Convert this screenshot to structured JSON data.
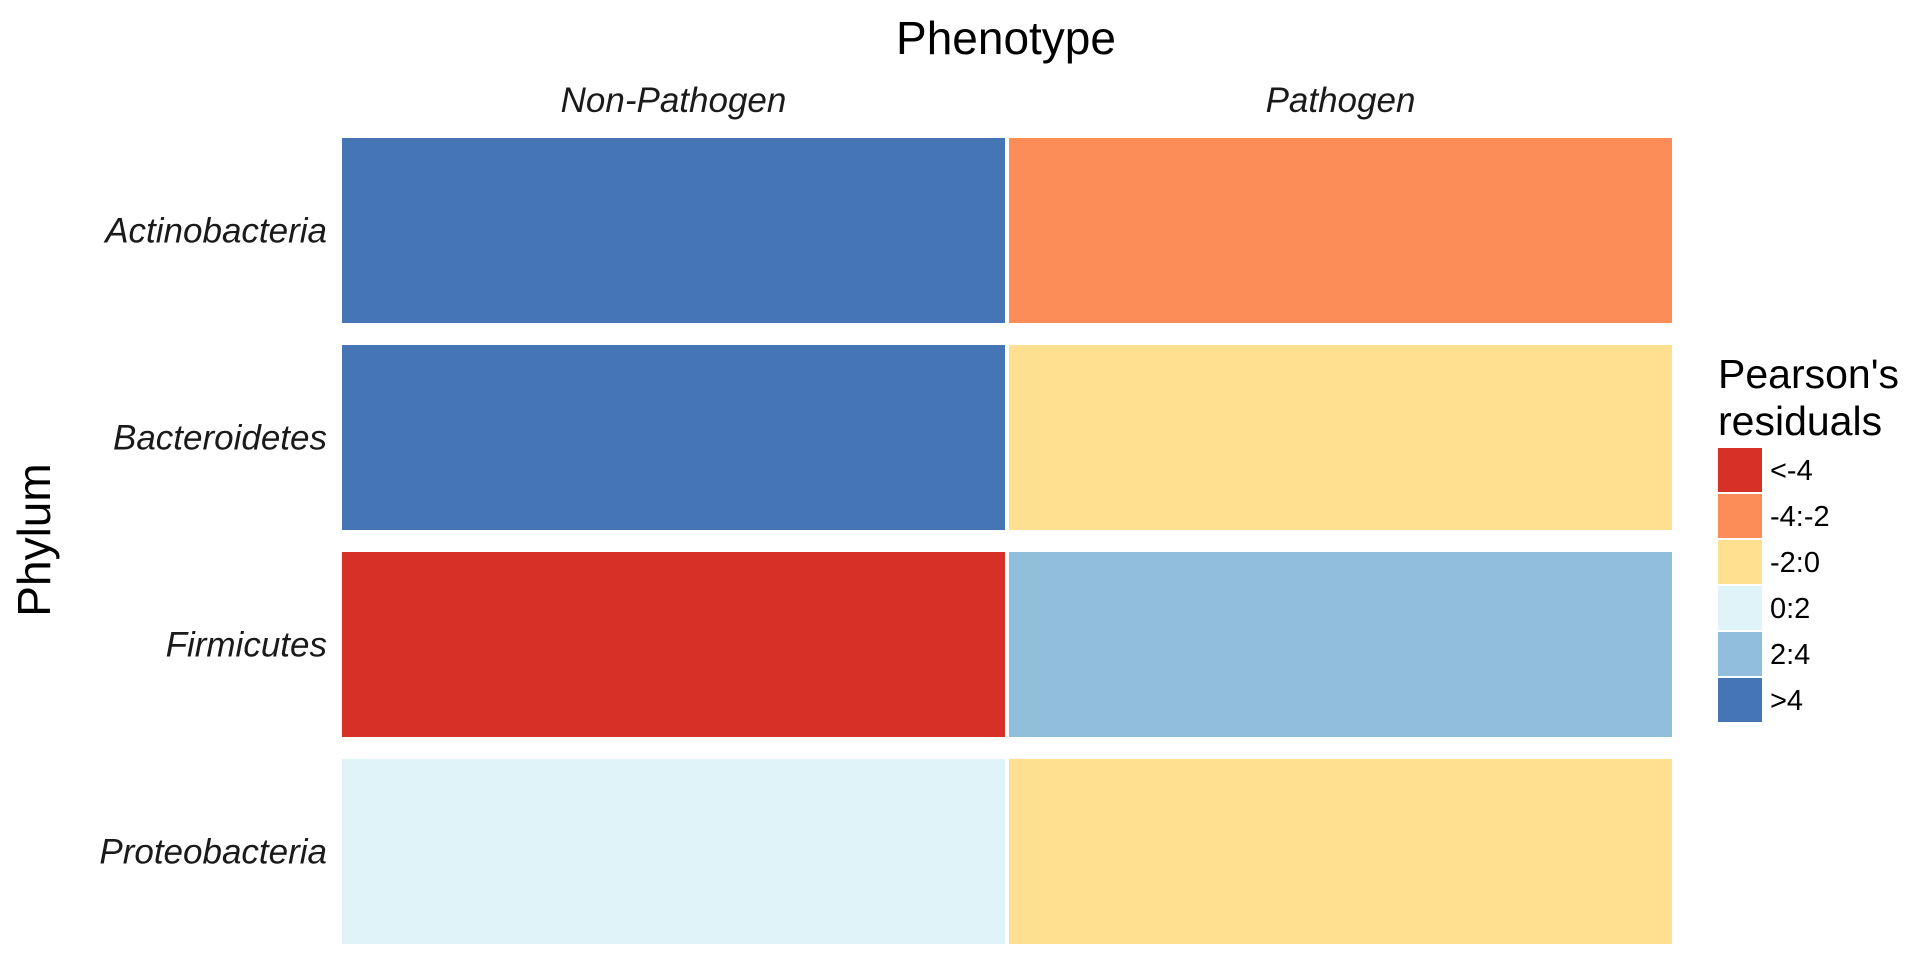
{
  "chart_data": {
    "type": "heatmap",
    "title": "Phenotype",
    "xlabel": "Phenotype",
    "ylabel": "Phylum",
    "x_categories": [
      "Non-Pathogen",
      "Pathogen"
    ],
    "y_categories": [
      "Actinobacteria",
      "Bacteroidetes",
      "Firmicutes",
      "Proteobacteria"
    ],
    "cells": [
      {
        "y": "Actinobacteria",
        "x": "Non-Pathogen",
        "value": ">4"
      },
      {
        "y": "Actinobacteria",
        "x": "Pathogen",
        "value": "-4:-2"
      },
      {
        "y": "Bacteroidetes",
        "x": "Non-Pathogen",
        "value": ">4"
      },
      {
        "y": "Bacteroidetes",
        "x": "Pathogen",
        "value": "-2:0"
      },
      {
        "y": "Firmicutes",
        "x": "Non-Pathogen",
        "value": "<-4"
      },
      {
        "y": "Firmicutes",
        "x": "Pathogen",
        "value": "2:4"
      },
      {
        "y": "Proteobacteria",
        "x": "Non-Pathogen",
        "value": "0:2"
      },
      {
        "y": "Proteobacteria",
        "x": "Pathogen",
        "value": "-2:0"
      }
    ],
    "legend": {
      "title": [
        "Pearson's",
        "residuals"
      ],
      "placement": "right",
      "entries": [
        {
          "label": "<-4",
          "color": "#d73027"
        },
        {
          "label": "-4:-2",
          "color": "#fc8d59"
        },
        {
          "label": "-2:0",
          "color": "#fee090"
        },
        {
          "label": "0:2",
          "color": "#e0f3f8"
        },
        {
          "label": "2:4",
          "color": "#91bfdb"
        },
        {
          "label": ">4",
          "color": "#4575b4"
        }
      ]
    },
    "grid": false
  }
}
